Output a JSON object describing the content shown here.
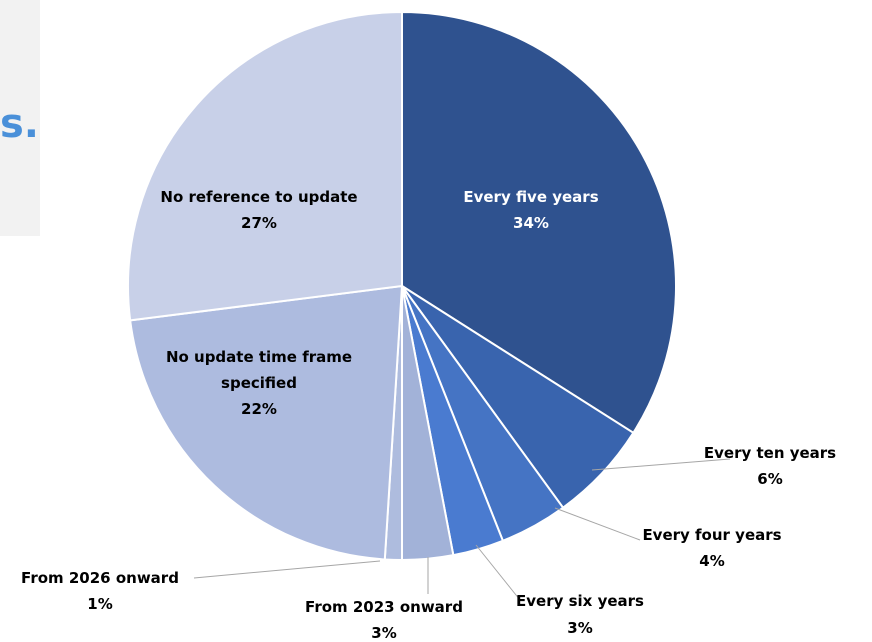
{
  "background_fragment": {
    "text": "s."
  },
  "chart_data": {
    "type": "pie",
    "title": "",
    "start_angle_deg": 0,
    "direction": "clockwise",
    "slices": [
      {
        "label": "Every five years",
        "value": 34,
        "value_label": "34%",
        "color": "#2f528f"
      },
      {
        "label": "Every ten years",
        "value": 6,
        "value_label": "6%",
        "color": "#3964ae"
      },
      {
        "label": "Every four years",
        "value": 4,
        "value_label": "4%",
        "color": "#4574c4"
      },
      {
        "label": "Every six years",
        "value": 3,
        "value_label": "3%",
        "color": "#4a7bd0"
      },
      {
        "label": "From 2023 onward",
        "value": 3,
        "value_label": "3%",
        "color": "#a2b2d8"
      },
      {
        "label": "From 2026 onward",
        "value": 1,
        "value_label": "1%",
        "color": "#aebcde"
      },
      {
        "label": "No update time frame specified",
        "value": 22,
        "value_label": "22%",
        "color": "#adbbdf"
      },
      {
        "label": "No reference to update",
        "value": 27,
        "value_label": "27%",
        "color": "#c8d0e8"
      }
    ]
  }
}
